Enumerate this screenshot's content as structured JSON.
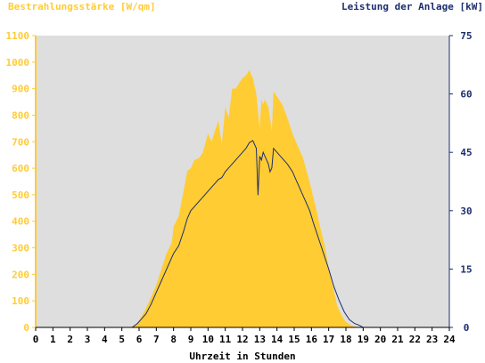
{
  "chart_data": {
    "type": "area",
    "ylabel_left": "Bestrahlungsstärke [W/qm]",
    "ylabel_right": "Leistung der Anlage [kW]",
    "xlabel": "Uhrzeit in Stunden",
    "x_ticks": [
      "0",
      "1",
      "2",
      "3",
      "4",
      "5",
      "6",
      "7",
      "8",
      "9",
      "10",
      "11",
      "12",
      "13",
      "14",
      "15",
      "16",
      "17",
      "18",
      "19",
      "20",
      "21",
      "22",
      "23",
      "24"
    ],
    "xlim": [
      0,
      24
    ],
    "y_left_ticks": [
      "0",
      "100",
      "200",
      "300",
      "400",
      "500",
      "600",
      "700",
      "800",
      "900",
      "1000",
      "1100"
    ],
    "y_left_lim": [
      0,
      1100
    ],
    "y_right_ticks": [
      "0",
      "15",
      "30",
      "45",
      "60",
      "75"
    ],
    "y_right_lim": [
      0,
      75
    ],
    "grid": false,
    "colors": {
      "irradiance": "#ffcc33",
      "power": "#1c2e6e",
      "plot_bg": "#dedede",
      "left_axis": "#ffcc33",
      "right_axis": "#1c2e6e"
    },
    "series": [
      {
        "name": "Bestrahlungsstärke [W/qm]",
        "axis": "left",
        "x": [
          0,
          5.5,
          5.8,
          6.0,
          6.3,
          6.6,
          7.0,
          7.3,
          7.6,
          7.9,
          8.0,
          8.3,
          8.6,
          8.8,
          9.0,
          9.2,
          9.5,
          9.7,
          10.0,
          10.2,
          10.4,
          10.6,
          10.8,
          11.0,
          11.2,
          11.4,
          11.6,
          11.8,
          12.0,
          12.2,
          12.4,
          12.6,
          12.8,
          13.0,
          13.1,
          13.2,
          13.3,
          13.5,
          13.7,
          13.8,
          14.0,
          14.3,
          14.6,
          14.9,
          15.1,
          15.3,
          15.5,
          15.8,
          16.0,
          16.3,
          16.5,
          16.8,
          17.0,
          17.3,
          17.5,
          17.8,
          18.0,
          18.3,
          18.5,
          18.8,
          19.0,
          24
        ],
        "values": [
          0,
          0,
          10,
          25,
          60,
          100,
          160,
          220,
          280,
          320,
          380,
          420,
          520,
          590,
          600,
          630,
          640,
          660,
          730,
          700,
          740,
          780,
          690,
          830,
          790,
          900,
          900,
          920,
          940,
          950,
          970,
          940,
          880,
          750,
          860,
          840,
          860,
          830,
          740,
          890,
          870,
          840,
          790,
          730,
          700,
          670,
          640,
          570,
          520,
          440,
          380,
          300,
          220,
          140,
          80,
          40,
          20,
          8,
          3,
          1,
          0,
          0
        ]
      },
      {
        "name": "Leistung der Anlage [kW]",
        "axis": "right",
        "x": [
          0,
          5.6,
          5.9,
          6.1,
          6.4,
          6.7,
          7.0,
          7.3,
          7.6,
          7.9,
          8.0,
          8.3,
          8.6,
          8.8,
          9.0,
          9.2,
          9.4,
          9.6,
          9.8,
          10.0,
          10.2,
          10.4,
          10.6,
          10.8,
          11.0,
          11.2,
          11.4,
          11.6,
          11.8,
          12.0,
          12.2,
          12.4,
          12.6,
          12.8,
          12.9,
          13.0,
          13.1,
          13.2,
          13.3,
          13.4,
          13.5,
          13.6,
          13.7,
          13.8,
          14.0,
          14.3,
          14.6,
          14.9,
          15.1,
          15.3,
          15.6,
          15.9,
          16.1,
          16.4,
          16.7,
          17.0,
          17.3,
          17.6,
          17.9,
          18.2,
          18.5,
          18.8,
          19.0,
          24
        ],
        "values": [
          0,
          0,
          1,
          2,
          3.5,
          6,
          9,
          12,
          15,
          18,
          19,
          21,
          25,
          28,
          30,
          31,
          32,
          33,
          34,
          35,
          36,
          37,
          38,
          38.5,
          40,
          41,
          42,
          43,
          44,
          45,
          46,
          47.5,
          48,
          46,
          34,
          44,
          43,
          45,
          44,
          43,
          42,
          40,
          41,
          46,
          45,
          43.5,
          42,
          40,
          38,
          36,
          33,
          30,
          27,
          23,
          19,
          15,
          10.5,
          7,
          4,
          2,
          1,
          0.5,
          0,
          0
        ]
      }
    ]
  }
}
